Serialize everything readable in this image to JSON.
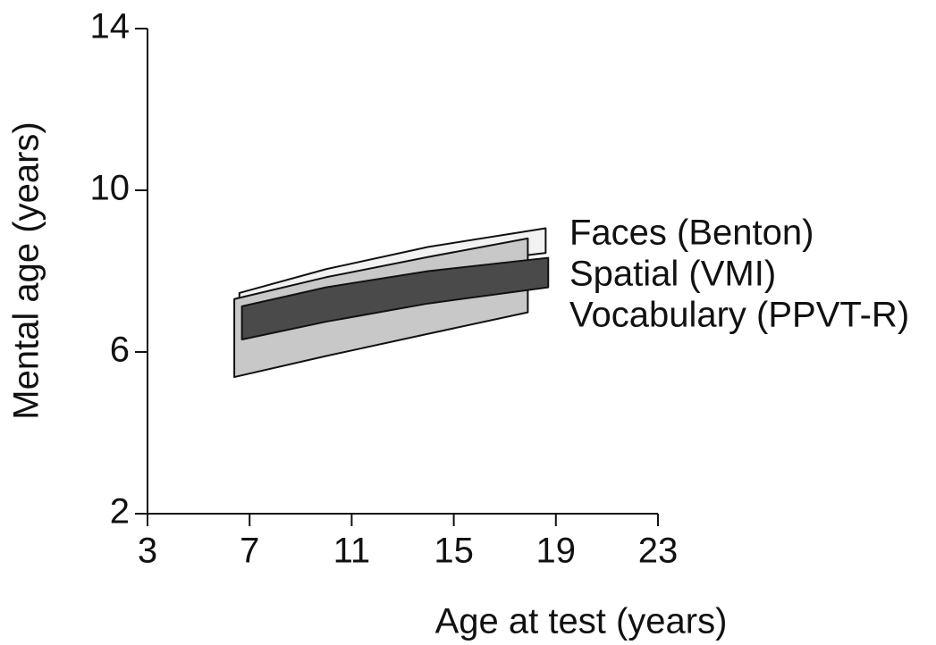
{
  "chart_data": {
    "type": "band",
    "xlabel": "Age at test (years)",
    "ylabel": "Mental age (years)",
    "xlim": [
      3,
      23
    ],
    "xticks": [
      3,
      7,
      11,
      15,
      19,
      23
    ],
    "ylim": [
      2,
      14
    ],
    "yticks": [
      2,
      6,
      10,
      14
    ],
    "series": [
      {
        "name": "Faces (Benton)",
        "color": "#f2f2f2",
        "x": [
          6.6,
          10,
          14,
          18.6
        ],
        "lower": [
          7.3,
          7.7,
          8.1,
          8.45
        ],
        "upper": [
          7.46,
          8.05,
          8.6,
          9.06
        ]
      },
      {
        "name": "Vocabulary (PPVT-R)",
        "color": "#c8c8c8",
        "x": [
          6.4,
          10,
          14,
          17.9
        ],
        "lower": [
          5.38,
          5.9,
          6.45,
          6.98
        ],
        "upper": [
          7.31,
          7.85,
          8.35,
          8.81
        ]
      },
      {
        "name": "Spatial (VMI)",
        "color": "#4a4a4a",
        "x": [
          6.7,
          10,
          14,
          18.7
        ],
        "lower": [
          6.31,
          6.75,
          7.2,
          7.6
        ],
        "upper": [
          7.13,
          7.6,
          8.0,
          8.33
        ]
      }
    ]
  }
}
